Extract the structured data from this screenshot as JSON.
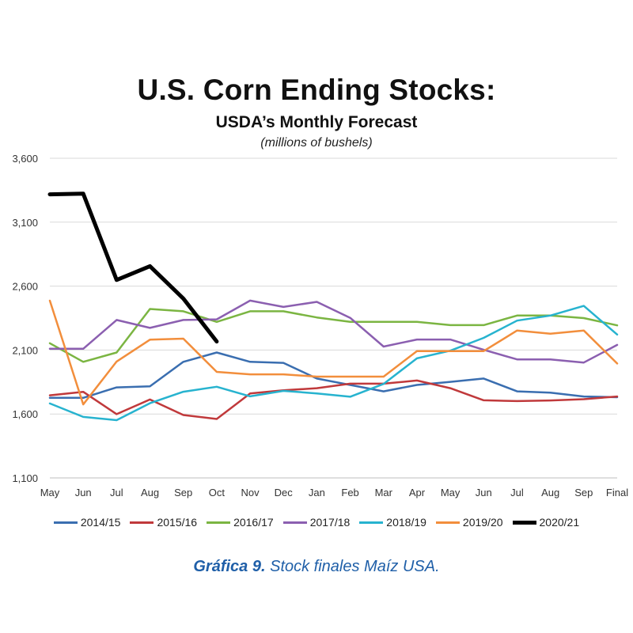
{
  "caption": {
    "label": "Gráfica 9.",
    "text": " Stock finales Maíz USA."
  },
  "chart_data": {
    "type": "line",
    "title": "U.S. Corn Ending Stocks:",
    "subtitle": "USDA’s Monthly Forecast",
    "units": "(millions of bushels)",
    "xlabel": "",
    "ylabel": "",
    "ylim": [
      1100,
      3600
    ],
    "yticks": [
      1100,
      1600,
      2100,
      2600,
      3100,
      3600
    ],
    "ytick_labels": [
      "1,100",
      "1,600",
      "2,100",
      "2,600",
      "3,100",
      "3,600"
    ],
    "categories": [
      "May",
      "Jun",
      "Jul",
      "Aug",
      "Sep",
      "Oct",
      "Nov",
      "Dec",
      "Jan",
      "Feb",
      "Mar",
      "Apr",
      "May",
      "Jun",
      "Jul",
      "Aug",
      "Sep",
      "Final"
    ],
    "grid": true,
    "legend_position": "bottom",
    "series": [
      {
        "name": "2014/15",
        "color": "#3a6eb0",
        "width": 2.5,
        "values": [
          1726,
          1726,
          1808,
          1816,
          2008,
          2081,
          2008,
          2000,
          1877,
          1827,
          1777,
          1827,
          1851,
          1877,
          1777,
          1767,
          1737,
          1731
        ]
      },
      {
        "name": "2015/16",
        "color": "#c0393b",
        "width": 2.5,
        "values": [
          1746,
          1773,
          1599,
          1713,
          1592,
          1561,
          1760,
          1785,
          1802,
          1837,
          1837,
          1862,
          1802,
          1707,
          1701,
          1706,
          1716,
          1737
        ]
      },
      {
        "name": "2016/17",
        "color": "#7bb542",
        "width": 2.5,
        "values": [
          2153,
          2008,
          2081,
          2421,
          2403,
          2320,
          2403,
          2403,
          2355,
          2320,
          2320,
          2320,
          2295,
          2295,
          2370,
          2370,
          2350,
          2293
        ]
      },
      {
        "name": "2017/18",
        "color": "#8b5fb0",
        "width": 2.5,
        "values": [
          2110,
          2110,
          2335,
          2273,
          2335,
          2340,
          2487,
          2437,
          2477,
          2352,
          2127,
          2182,
          2182,
          2102,
          2027,
          2027,
          2002,
          2140
        ]
      },
      {
        "name": "2018/19",
        "color": "#27b3cf",
        "width": 2.5,
        "values": [
          1682,
          1577,
          1552,
          1684,
          1774,
          1813,
          1738,
          1781,
          1761,
          1735,
          1835,
          2035,
          2095,
          2195,
          2330,
          2370,
          2445,
          2221
        ]
      },
      {
        "name": "2019/20",
        "color": "#f28e3c",
        "width": 2.5,
        "values": [
          2486,
          1675,
          2010,
          2181,
          2189,
          1929,
          1910,
          1910,
          1892,
          1892,
          1892,
          2092,
          2092,
          2092,
          2253,
          2228,
          2253,
          1995
        ]
      },
      {
        "name": "2020/21",
        "color": "#000000",
        "width": 5,
        "values": [
          3318,
          3323,
          2648,
          2756,
          2503,
          2167,
          null,
          null,
          null,
          null,
          null,
          null,
          null,
          null,
          null,
          null,
          null,
          null
        ]
      }
    ]
  }
}
